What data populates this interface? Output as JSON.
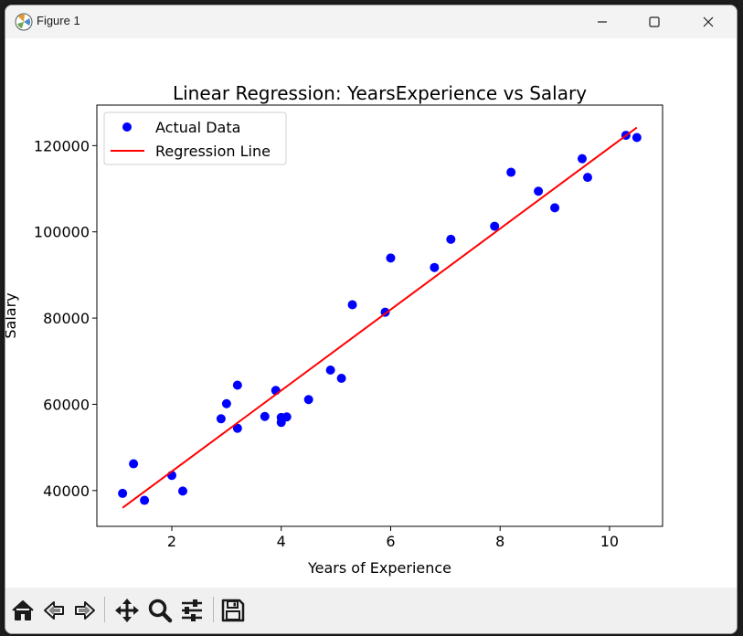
{
  "window": {
    "title": "Figure 1"
  },
  "toolbar": {
    "buttons": [
      {
        "name": "home-button",
        "icon": "home-icon"
      },
      {
        "name": "back-button",
        "icon": "arrow-left-icon"
      },
      {
        "name": "forward-button",
        "icon": "arrow-right-icon"
      },
      {
        "name": "pan-button",
        "icon": "move-icon"
      },
      {
        "name": "zoom-button",
        "icon": "magnifier-icon"
      },
      {
        "name": "configure-subplots-button",
        "icon": "sliders-icon"
      },
      {
        "name": "save-button",
        "icon": "floppy-disk-icon"
      }
    ]
  },
  "chart_data": {
    "type": "scatter",
    "title": "Linear Regression: YearsExperience vs Salary",
    "xlabel": "Years of Experience",
    "ylabel": "Salary",
    "xlim": [
      0.63,
      10.97
    ],
    "ylim": [
      31700,
      129400
    ],
    "xticks": [
      2,
      4,
      6,
      8,
      10
    ],
    "yticks": [
      40000,
      60000,
      80000,
      100000,
      120000
    ],
    "grid": false,
    "legend": {
      "position": "upper left",
      "entries": [
        "Actual Data",
        "Regression Line"
      ]
    },
    "series": [
      {
        "name": "Actual Data",
        "kind": "scatter",
        "color": "#0000ff",
        "points": [
          [
            1.1,
            39343
          ],
          [
            1.3,
            46205
          ],
          [
            1.5,
            37731
          ],
          [
            2.0,
            43525
          ],
          [
            2.2,
            39891
          ],
          [
            2.9,
            56642
          ],
          [
            3.0,
            60150
          ],
          [
            3.2,
            54445
          ],
          [
            3.2,
            64445
          ],
          [
            3.7,
            57189
          ],
          [
            3.9,
            63218
          ],
          [
            4.0,
            55794
          ],
          [
            4.0,
            56957
          ],
          [
            4.1,
            57081
          ],
          [
            4.5,
            61111
          ],
          [
            4.9,
            67938
          ],
          [
            5.1,
            66029
          ],
          [
            5.3,
            83088
          ],
          [
            5.9,
            81363
          ],
          [
            6.0,
            93940
          ],
          [
            6.8,
            91738
          ],
          [
            7.1,
            98273
          ],
          [
            7.9,
            101302
          ],
          [
            8.2,
            113812
          ],
          [
            8.7,
            109431
          ],
          [
            9.0,
            105582
          ],
          [
            9.5,
            116969
          ],
          [
            9.6,
            112635
          ],
          [
            10.3,
            122391
          ],
          [
            10.5,
            121872
          ]
        ]
      },
      {
        "name": "Regression Line",
        "kind": "line",
        "color": "#ff0000",
        "points": [
          [
            1.1,
            36000
          ],
          [
            10.5,
            124200
          ]
        ]
      }
    ]
  }
}
